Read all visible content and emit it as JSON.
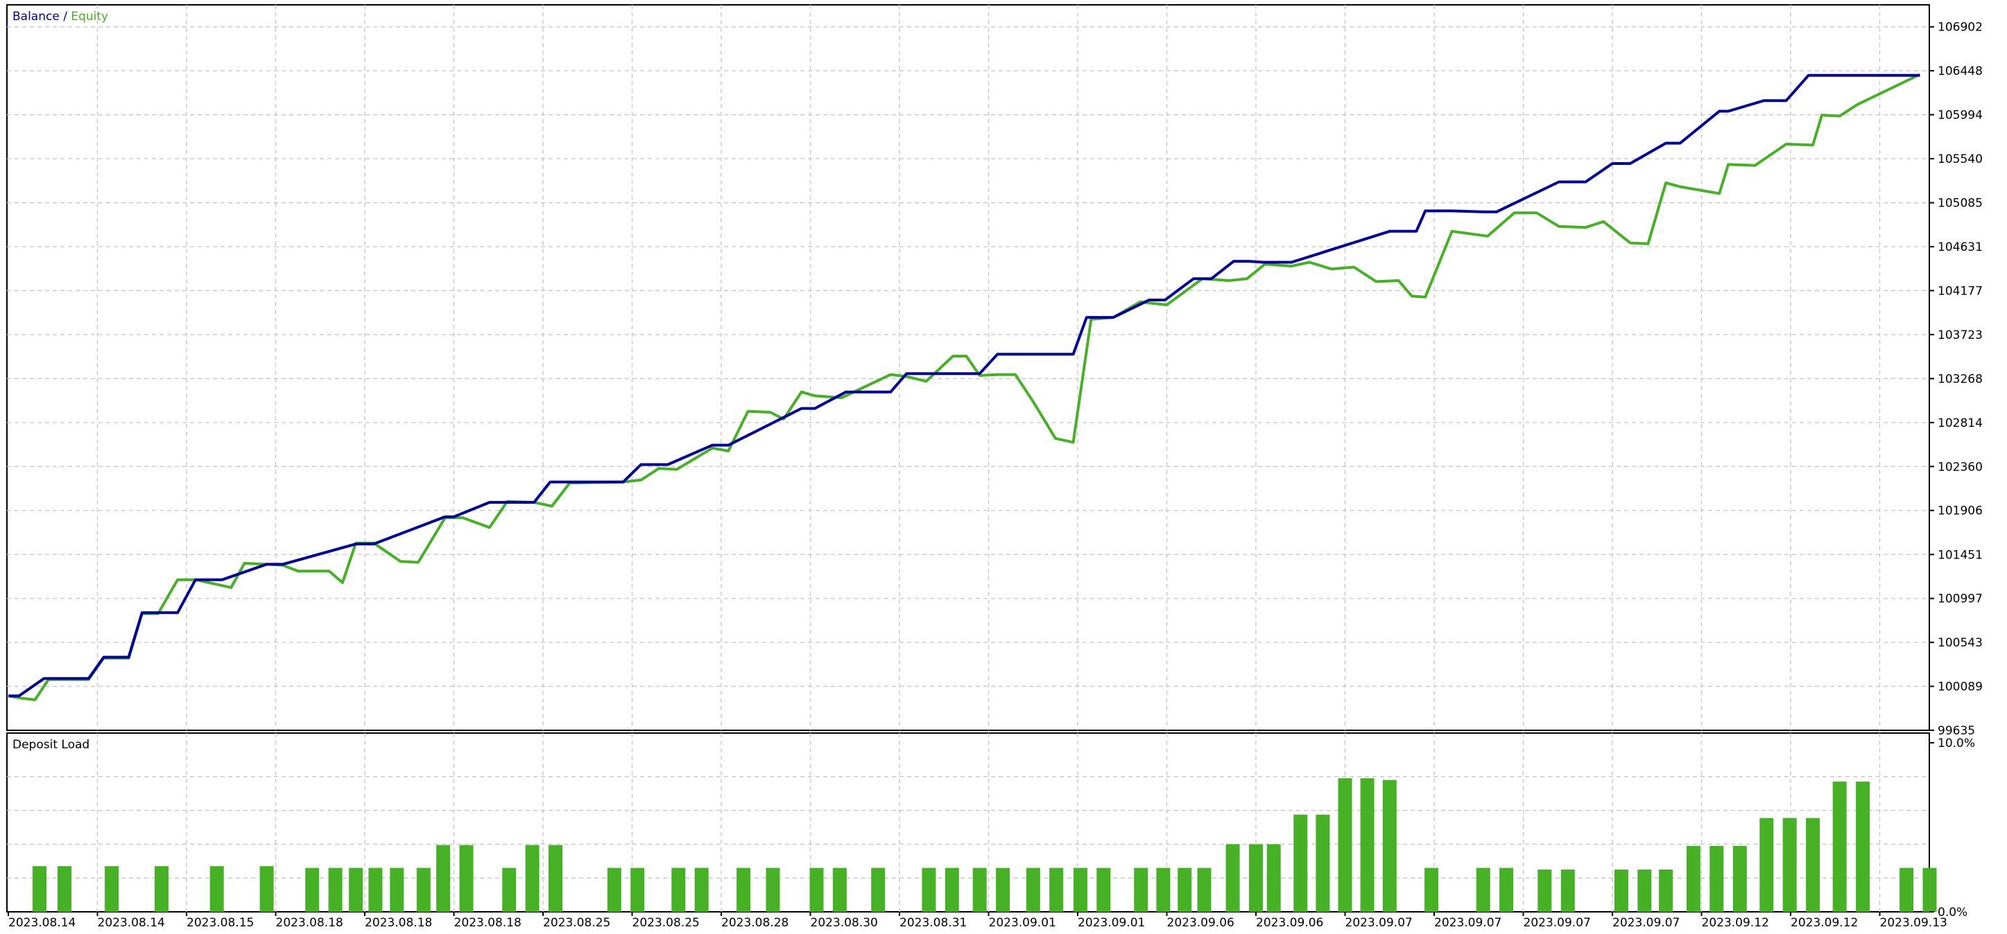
{
  "chart_data": [
    {
      "type": "line",
      "legend": {
        "balance_label": "Balance",
        "separator": " / ",
        "equity_label": "Equity",
        "placement": "top-left"
      },
      "colors": {
        "balance": "#00009c",
        "equity": "#46b125",
        "grid": "#c4c4c4",
        "axis": "#000000"
      },
      "grid": true,
      "ylim": [
        99635,
        107129
      ],
      "y_ticks": [
        "106902",
        "106448",
        "105994",
        "105540",
        "105085",
        "104631",
        "104177",
        "103723",
        "103268",
        "102814",
        "102360",
        "101906",
        "101451",
        "100997",
        "100543",
        "100089",
        "99635"
      ],
      "x_ticks": [
        "2023.08.14",
        "2023.08.14",
        "2023.08.15",
        "2023.08.18",
        "2023.08.18",
        "2023.08.18",
        "2023.08.25",
        "2023.08.25",
        "2023.08.28",
        "2023.08.30",
        "2023.08.31",
        "2023.09.01",
        "2023.09.01",
        "2023.09.06",
        "2023.09.06",
        "2023.09.07",
        "2023.09.07",
        "2023.09.07",
        "2023.09.07",
        "2023.09.12",
        "2023.09.12",
        "2023.09.13"
      ],
      "series": [
        {
          "name": "Balance",
          "x": [
            0,
            0.12,
            0.4,
            0.9,
            1.07,
            1.35,
            1.5,
            1.9,
            2.1,
            2.4,
            2.9,
            3.08,
            3.9,
            4.1,
            4.9,
            5.0,
            5.4,
            5.9,
            6.08,
            6.9,
            7.1,
            7.4,
            7.9,
            8.08,
            8.9,
            9.05,
            9.4,
            9.9,
            10.08,
            10.9,
            11.1,
            11.45,
            11.8,
            11.95,
            12.1,
            12.4,
            12.8,
            12.98,
            13.3,
            13.5,
            13.75,
            13.92,
            14.08,
            14.4,
            15.5,
            15.8,
            15.9,
            16.2,
            16.55,
            16.7,
            17.4,
            17.7,
            18.0,
            18.2,
            18.6,
            18.76,
            19.2,
            19.3,
            19.7,
            19.95,
            20.2,
            20.7,
            20.85,
            21.45
          ],
          "y": [
            99990,
            99990,
            100170,
            100170,
            100390,
            100390,
            100850,
            100850,
            101190,
            101190,
            101350,
            101350,
            101560,
            101560,
            101840,
            101840,
            101990,
            101990,
            102200,
            102200,
            102380,
            102380,
            102580,
            102580,
            102960,
            102960,
            103130,
            103130,
            103320,
            103320,
            103520,
            103520,
            103520,
            103520,
            103900,
            103900,
            104080,
            104080,
            104300,
            104300,
            104480,
            104480,
            104470,
            104470,
            104790,
            104790,
            105000,
            105000,
            104990,
            104990,
            105300,
            105300,
            105490,
            105490,
            105700,
            105700,
            106030,
            106030,
            106140,
            106140,
            106400,
            106400,
            106400,
            106400
          ]
        },
        {
          "name": "Equity",
          "x": [
            0,
            0.12,
            0.3,
            0.45,
            0.9,
            1.07,
            1.35,
            1.5,
            1.68,
            1.9,
            2.1,
            2.25,
            2.5,
            2.65,
            2.9,
            3.08,
            3.25,
            3.6,
            3.75,
            3.9,
            4.1,
            4.4,
            4.6,
            4.9,
            5.1,
            5.4,
            5.6,
            5.9,
            6.1,
            6.3,
            6.9,
            7.1,
            7.3,
            7.5,
            7.9,
            8.08,
            8.3,
            8.55,
            8.7,
            8.9,
            9.05,
            9.35,
            9.9,
            10.08,
            10.3,
            10.6,
            10.75,
            10.9,
            11.1,
            11.3,
            11.5,
            11.75,
            11.95,
            12.15,
            12.4,
            12.7,
            13.0,
            13.4,
            13.7,
            13.9,
            14.1,
            14.4,
            14.6,
            14.85,
            15.1,
            15.35,
            15.6,
            15.75,
            15.9,
            16.2,
            16.6,
            16.9,
            17.15,
            17.4,
            17.7,
            17.9,
            18.2,
            18.4,
            18.6,
            18.76,
            19.2,
            19.3,
            19.6,
            19.95,
            20.25,
            20.35,
            20.55,
            20.75,
            21.45
          ],
          "y": [
            99990,
            99970,
            99950,
            100160,
            100160,
            100380,
            100380,
            100840,
            100840,
            101190,
            101190,
            101160,
            101110,
            101360,
            101350,
            101340,
            101280,
            101280,
            101160,
            101570,
            101570,
            101380,
            101370,
            101830,
            101830,
            101730,
            102000,
            101990,
            101950,
            102190,
            102200,
            102220,
            102340,
            102330,
            102550,
            102520,
            102930,
            102920,
            102850,
            103130,
            103090,
            103070,
            103310,
            103290,
            103240,
            103500,
            103500,
            103300,
            103310,
            103310,
            103030,
            102650,
            102610,
            103880,
            103900,
            104060,
            104030,
            104300,
            104280,
            104300,
            104450,
            104430,
            104470,
            104400,
            104420,
            104270,
            104280,
            104120,
            104110,
            104790,
            104740,
            104980,
            104980,
            104840,
            104830,
            104890,
            104670,
            104660,
            105290,
            105250,
            105180,
            105480,
            105470,
            105690,
            105680,
            105990,
            105980,
            106100,
            106410
          ]
        }
      ]
    },
    {
      "type": "bar",
      "title": "Deposit Load",
      "ylim": [
        0,
        10
      ],
      "y_ticks": [
        "10.0%",
        "0.0%"
      ],
      "colors": {
        "bar": "#46b125"
      },
      "bars": [
        {
          "x": 0.35,
          "value": 2.7
        },
        {
          "x": 0.63,
          "value": 2.7
        },
        {
          "x": 1.16,
          "value": 2.7
        },
        {
          "x": 1.72,
          "value": 2.7
        },
        {
          "x": 2.34,
          "value": 2.7
        },
        {
          "x": 2.9,
          "value": 2.7
        },
        {
          "x": 3.41,
          "value": 2.6
        },
        {
          "x": 3.67,
          "value": 2.6
        },
        {
          "x": 3.9,
          "value": 2.6
        },
        {
          "x": 4.12,
          "value": 2.6
        },
        {
          "x": 4.36,
          "value": 2.6
        },
        {
          "x": 4.66,
          "value": 2.6
        },
        {
          "x": 4.88,
          "value": 3.95
        },
        {
          "x": 5.14,
          "value": 3.95
        },
        {
          "x": 5.62,
          "value": 2.6
        },
        {
          "x": 5.88,
          "value": 3.95
        },
        {
          "x": 6.14,
          "value": 3.95
        },
        {
          "x": 6.8,
          "value": 2.6
        },
        {
          "x": 7.06,
          "value": 2.6
        },
        {
          "x": 7.52,
          "value": 2.6
        },
        {
          "x": 7.78,
          "value": 2.6
        },
        {
          "x": 8.25,
          "value": 2.6
        },
        {
          "x": 8.58,
          "value": 2.6
        },
        {
          "x": 9.07,
          "value": 2.6
        },
        {
          "x": 9.33,
          "value": 2.6
        },
        {
          "x": 9.76,
          "value": 2.6
        },
        {
          "x": 10.33,
          "value": 2.6
        },
        {
          "x": 10.59,
          "value": 2.6
        },
        {
          "x": 10.9,
          "value": 2.6
        },
        {
          "x": 11.16,
          "value": 2.6
        },
        {
          "x": 11.5,
          "value": 2.6
        },
        {
          "x": 11.76,
          "value": 2.6
        },
        {
          "x": 12.03,
          "value": 2.6
        },
        {
          "x": 12.29,
          "value": 2.6
        },
        {
          "x": 12.71,
          "value": 2.6
        },
        {
          "x": 12.96,
          "value": 2.6
        },
        {
          "x": 13.2,
          "value": 2.6
        },
        {
          "x": 13.42,
          "value": 2.6
        },
        {
          "x": 13.74,
          "value": 4.0
        },
        {
          "x": 14.0,
          "value": 4.0
        },
        {
          "x": 14.2,
          "value": 4.0
        },
        {
          "x": 14.5,
          "value": 5.75
        },
        {
          "x": 14.75,
          "value": 5.75
        },
        {
          "x": 15.0,
          "value": 7.9
        },
        {
          "x": 15.25,
          "value": 7.9
        },
        {
          "x": 15.5,
          "value": 7.8
        },
        {
          "x": 15.97,
          "value": 2.6
        },
        {
          "x": 16.55,
          "value": 2.6
        },
        {
          "x": 16.81,
          "value": 2.6
        },
        {
          "x": 17.24,
          "value": 2.5
        },
        {
          "x": 17.5,
          "value": 2.5
        },
        {
          "x": 18.1,
          "value": 2.5
        },
        {
          "x": 18.36,
          "value": 2.5
        },
        {
          "x": 18.6,
          "value": 2.5
        },
        {
          "x": 18.91,
          "value": 3.9
        },
        {
          "x": 19.17,
          "value": 3.9
        },
        {
          "x": 19.43,
          "value": 3.9
        },
        {
          "x": 19.73,
          "value": 5.55
        },
        {
          "x": 19.99,
          "value": 5.55
        },
        {
          "x": 20.25,
          "value": 5.55
        },
        {
          "x": 20.55,
          "value": 7.7
        },
        {
          "x": 20.81,
          "value": 7.7
        },
        {
          "x": 21.3,
          "value": 2.6
        },
        {
          "x": 21.56,
          "value": 2.6
        }
      ]
    }
  ]
}
